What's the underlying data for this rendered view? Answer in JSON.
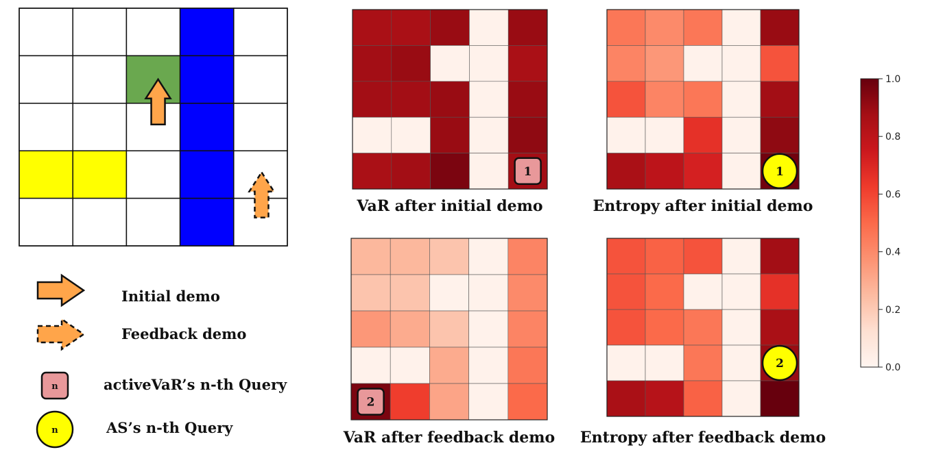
{
  "grid_world": {
    "rows": 5,
    "cols": 5,
    "cells": [
      [
        "white",
        "white",
        "white",
        "blue",
        "white"
      ],
      [
        "white",
        "white",
        "green",
        "blue",
        "white"
      ],
      [
        "white",
        "white",
        "white",
        "blue",
        "white"
      ],
      [
        "yellow",
        "yellow",
        "white",
        "blue",
        "white"
      ],
      [
        "white",
        "white",
        "white",
        "blue",
        "white"
      ]
    ],
    "colors": {
      "white": "#ffffff",
      "green": "#6aa84f",
      "yellow": "#ffff00",
      "blue": "#0000ff",
      "arrow": "#ffa54a"
    },
    "initial_arrow_cell": [
      2,
      2
    ],
    "feedback_arrow_cell": [
      4,
      4
    ]
  },
  "legend": {
    "initial_demo": "Initial demo",
    "feedback_demo": "Feedback demo",
    "activevar_query": "activeVaR’s n-th Query",
    "as_query": "AS’s n-th Query",
    "marker_symbol": "n"
  },
  "heatmaps": [
    {
      "title": "VaR after initial demo",
      "values": [
        [
          0.86,
          0.86,
          0.9,
          0.02,
          0.9
        ],
        [
          0.88,
          0.9,
          0.02,
          0.02,
          0.86
        ],
        [
          0.88,
          0.88,
          0.9,
          0.02,
          0.9
        ],
        [
          0.02,
          0.02,
          0.9,
          0.02,
          0.92
        ],
        [
          0.86,
          0.88,
          0.96,
          0.02,
          0.88
        ]
      ],
      "marker": {
        "type": "square",
        "row": 4,
        "col": 4,
        "label": "1"
      }
    },
    {
      "title": "Entropy after initial demo",
      "values": [
        [
          0.46,
          0.4,
          0.46,
          0.02,
          0.9
        ],
        [
          0.42,
          0.36,
          0.02,
          0.02,
          0.56
        ],
        [
          0.56,
          0.42,
          0.46,
          0.02,
          0.88
        ],
        [
          0.02,
          0.02,
          0.66,
          0.02,
          0.92
        ],
        [
          0.86,
          0.8,
          0.72,
          0.02,
          0.98
        ]
      ],
      "marker": {
        "type": "circle",
        "row": 4,
        "col": 4,
        "label": "1"
      }
    },
    {
      "title": "VaR after feedback demo",
      "values": [
        [
          0.26,
          0.26,
          0.22,
          0.02,
          0.42
        ],
        [
          0.22,
          0.22,
          0.02,
          0.02,
          0.4
        ],
        [
          0.36,
          0.3,
          0.22,
          0.02,
          0.42
        ],
        [
          0.02,
          0.02,
          0.3,
          0.02,
          0.46
        ],
        [
          0.96,
          0.62,
          0.32,
          0.02,
          0.5
        ]
      ],
      "marker": {
        "type": "square",
        "row": 4,
        "col": 0,
        "label": "2"
      }
    },
    {
      "title": "Entropy after feedback demo",
      "values": [
        [
          0.56,
          0.52,
          0.56,
          0.02,
          0.88
        ],
        [
          0.56,
          0.5,
          0.02,
          0.02,
          0.66
        ],
        [
          0.56,
          0.5,
          0.46,
          0.02,
          0.86
        ],
        [
          0.02,
          0.02,
          0.46,
          0.02,
          0.9
        ],
        [
          0.86,
          0.82,
          0.52,
          0.02,
          1.0
        ]
      ],
      "marker": {
        "type": "circle",
        "row": 3,
        "col": 4,
        "label": "2"
      }
    }
  ],
  "colorbar": {
    "min": 0.0,
    "max": 1.0,
    "ticks": [
      "0.0",
      "0.2",
      "0.4",
      "0.6",
      "0.8",
      "1.0"
    ]
  }
}
